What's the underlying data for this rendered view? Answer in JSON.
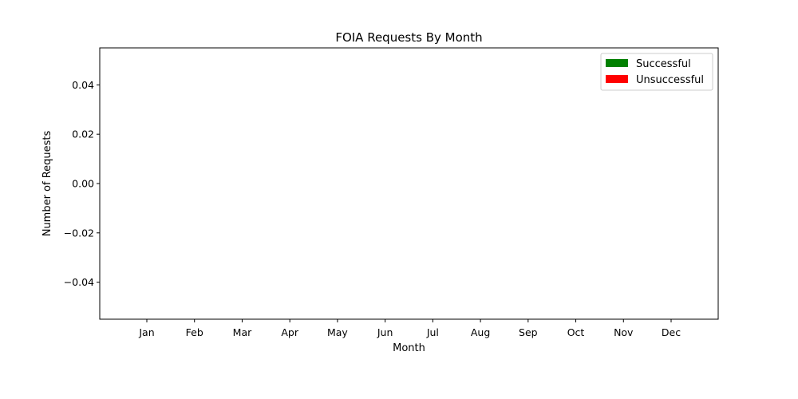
{
  "chart_data": {
    "type": "bar",
    "title": "FOIA Requests By Month",
    "xlabel": "Month",
    "ylabel": "Number of Requests",
    "categories": [
      "Jan",
      "Feb",
      "Mar",
      "Apr",
      "May",
      "Jun",
      "Jul",
      "Aug",
      "Sep",
      "Oct",
      "Nov",
      "Dec"
    ],
    "series": [
      {
        "name": "Successful",
        "color": "#008000",
        "values": [
          0,
          0,
          0,
          0,
          0,
          0,
          0,
          0,
          0,
          0,
          0,
          0
        ]
      },
      {
        "name": "Unsuccessful",
        "color": "#ff0000",
        "values": [
          0,
          0,
          0,
          0,
          0,
          0,
          0,
          0,
          0,
          0,
          0,
          0
        ]
      }
    ],
    "stacked": true,
    "ylim": [
      -0.055,
      0.055
    ],
    "yticks": [
      -0.04,
      -0.02,
      0.0,
      0.02,
      0.04
    ],
    "ytick_labels": [
      "−0.04",
      "−0.02",
      "0.00",
      "0.02",
      "0.04"
    ],
    "grid": false,
    "legend_position": "top-right"
  }
}
